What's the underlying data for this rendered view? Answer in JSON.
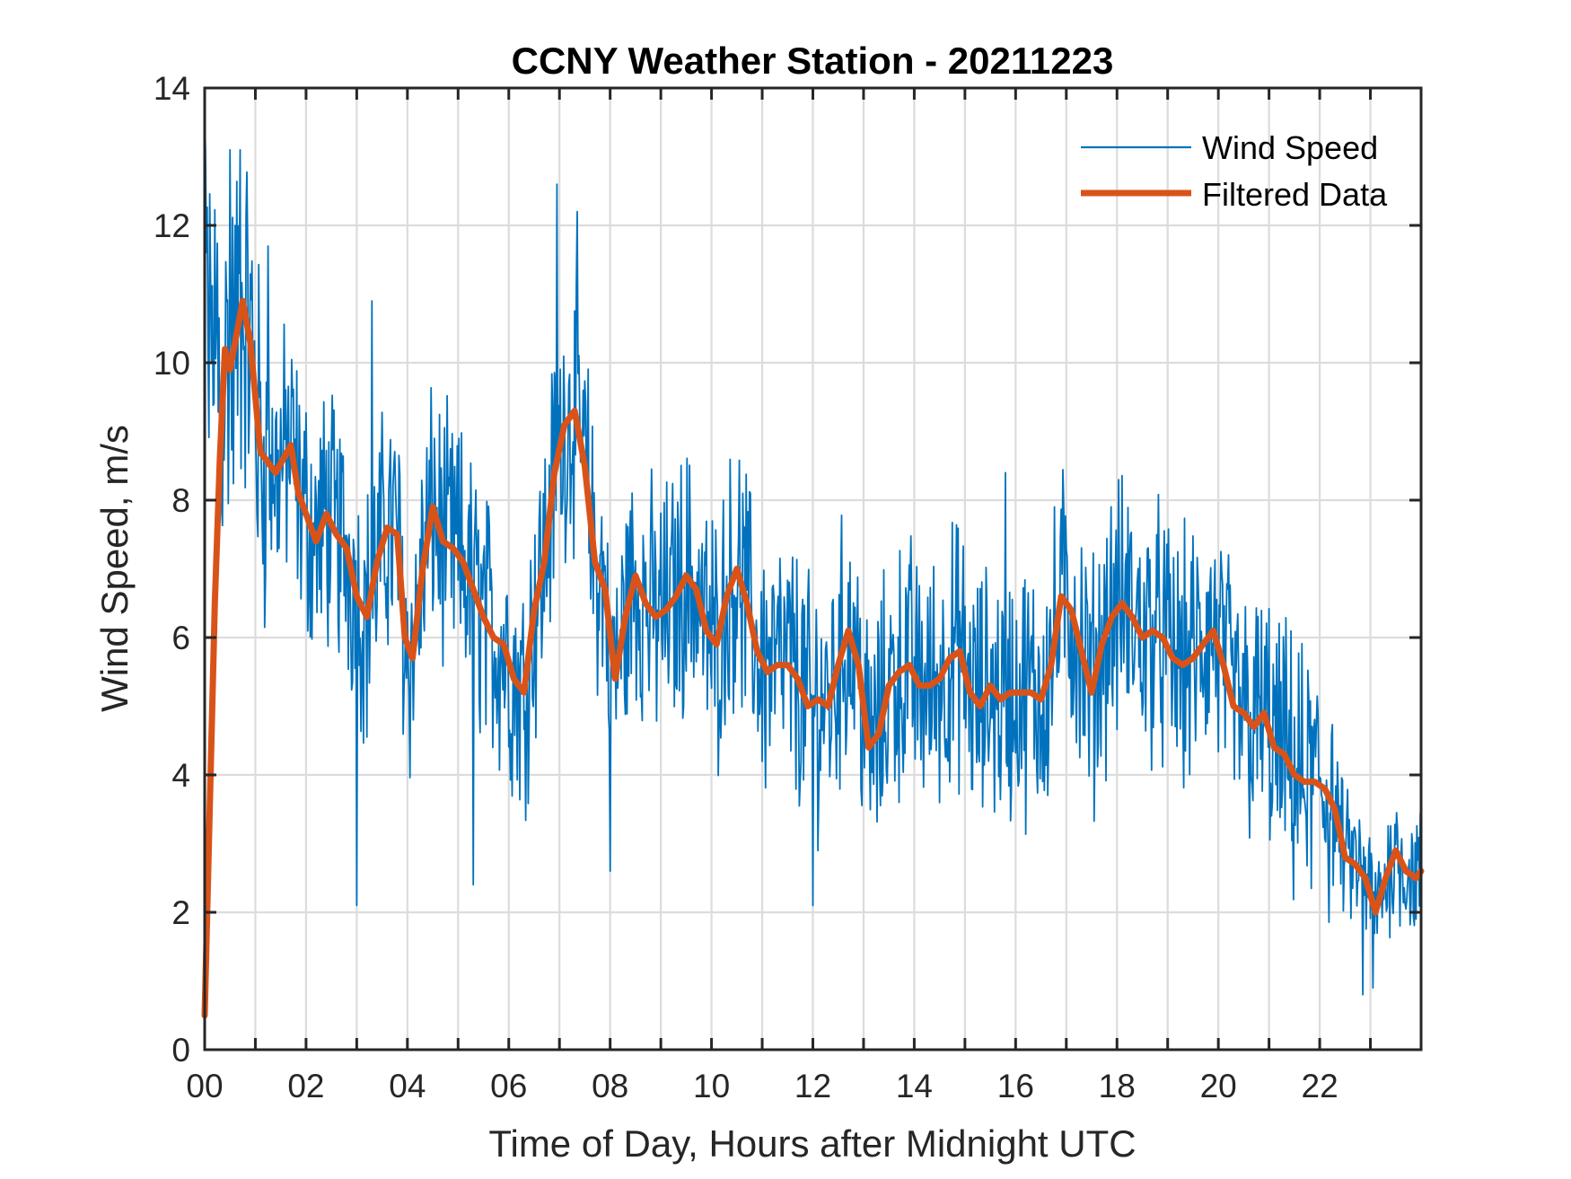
{
  "chart_data": {
    "type": "line",
    "title": "CCNY Weather Station - 20211223",
    "xlabel": "Time of Day, Hours after Midnight UTC",
    "ylabel": "Wind Speed, m/s",
    "xlim": [
      0,
      24
    ],
    "ylim": [
      0,
      14
    ],
    "xticks": [
      0,
      2,
      4,
      6,
      8,
      10,
      12,
      14,
      16,
      18,
      20,
      22
    ],
    "xtick_labels": [
      "00",
      "02",
      "04",
      "06",
      "08",
      "10",
      "12",
      "14",
      "16",
      "18",
      "20",
      "22"
    ],
    "xminor_grid_step_hours": 1,
    "yticks": [
      0,
      2,
      4,
      6,
      8,
      10,
      12,
      14
    ],
    "ytick_labels": [
      "0",
      "2",
      "4",
      "6",
      "8",
      "10",
      "12",
      "14"
    ],
    "grid": true,
    "legend": {
      "placement": "top-right",
      "entries": [
        "Wind Speed",
        "Filtered Data"
      ]
    },
    "series": [
      {
        "name": "Wind Speed",
        "color": "#0072BD",
        "style": "thin line, noisy high-frequency samples",
        "noise_amplitude_ms": 1.6,
        "notable_points": [
          {
            "x": 0.0,
            "y": 13.6
          },
          {
            "x": 0.5,
            "y": 13.1
          },
          {
            "x": 0.7,
            "y": 13.1
          },
          {
            "x": 1.25,
            "y": 11.7
          },
          {
            "x": 3.0,
            "y": 2.1
          },
          {
            "x": 3.3,
            "y": 10.9
          },
          {
            "x": 5.3,
            "y": 2.4
          },
          {
            "x": 6.95,
            "y": 12.6
          },
          {
            "x": 7.35,
            "y": 12.2
          },
          {
            "x": 8.0,
            "y": 2.6
          },
          {
            "x": 12.0,
            "y": 2.1
          },
          {
            "x": 15.8,
            "y": 8.4
          },
          {
            "x": 22.85,
            "y": 0.8
          },
          {
            "x": 23.05,
            "y": 0.9
          }
        ]
      },
      {
        "name": "Filtered Data",
        "color": "#D95319",
        "style": "thick line",
        "x": [
          0.0,
          0.1,
          0.2,
          0.3,
          0.4,
          0.5,
          0.6,
          0.75,
          0.9,
          1.0,
          1.1,
          1.2,
          1.4,
          1.55,
          1.7,
          1.85,
          2.0,
          2.2,
          2.4,
          2.6,
          2.8,
          3.0,
          3.2,
          3.4,
          3.6,
          3.8,
          3.95,
          4.1,
          4.3,
          4.5,
          4.7,
          4.9,
          5.1,
          5.3,
          5.5,
          5.7,
          5.9,
          6.1,
          6.3,
          6.5,
          6.7,
          6.9,
          7.1,
          7.3,
          7.5,
          7.7,
          7.9,
          8.1,
          8.3,
          8.5,
          8.7,
          8.9,
          9.1,
          9.3,
          9.5,
          9.7,
          9.9,
          10.1,
          10.3,
          10.5,
          10.7,
          10.9,
          11.1,
          11.3,
          11.5,
          11.7,
          11.9,
          12.1,
          12.3,
          12.5,
          12.7,
          12.9,
          13.1,
          13.3,
          13.5,
          13.7,
          13.9,
          14.1,
          14.3,
          14.5,
          14.7,
          14.9,
          15.1,
          15.3,
          15.5,
          15.7,
          15.9,
          16.1,
          16.3,
          16.5,
          16.7,
          16.9,
          17.1,
          17.3,
          17.5,
          17.7,
          17.9,
          18.1,
          18.3,
          18.5,
          18.7,
          18.9,
          19.1,
          19.3,
          19.5,
          19.7,
          19.9,
          20.1,
          20.3,
          20.5,
          20.7,
          20.9,
          21.1,
          21.3,
          21.5,
          21.7,
          21.9,
          22.1,
          22.3,
          22.5,
          22.7,
          22.9,
          23.1,
          23.3,
          23.5,
          23.7,
          23.9,
          24.0
        ],
        "y": [
          0.5,
          3.5,
          6.5,
          8.6,
          10.2,
          9.9,
          10.3,
          10.9,
          10.3,
          9.5,
          8.7,
          8.6,
          8.4,
          8.6,
          8.8,
          8.1,
          7.8,
          7.4,
          7.8,
          7.5,
          7.3,
          6.6,
          6.3,
          7.1,
          7.6,
          7.5,
          6.0,
          5.7,
          7.0,
          7.9,
          7.4,
          7.3,
          7.1,
          6.7,
          6.3,
          6.0,
          5.9,
          5.4,
          5.2,
          6.4,
          7.1,
          8.4,
          9.1,
          9.3,
          8.5,
          7.1,
          6.7,
          5.4,
          6.3,
          6.9,
          6.5,
          6.3,
          6.4,
          6.6,
          6.9,
          6.7,
          6.1,
          5.9,
          6.6,
          7.0,
          6.5,
          5.8,
          5.5,
          5.6,
          5.6,
          5.4,
          5.0,
          5.1,
          5.0,
          5.6,
          6.1,
          5.6,
          4.4,
          4.6,
          5.3,
          5.5,
          5.6,
          5.3,
          5.3,
          5.4,
          5.7,
          5.8,
          5.2,
          5.0,
          5.3,
          5.1,
          5.2,
          5.2,
          5.2,
          5.1,
          5.6,
          6.6,
          6.4,
          5.8,
          5.2,
          5.9,
          6.3,
          6.5,
          6.3,
          6.0,
          6.1,
          6.0,
          5.7,
          5.6,
          5.7,
          5.9,
          6.1,
          5.6,
          5.0,
          4.9,
          4.7,
          4.9,
          4.4,
          4.3,
          4.0,
          3.9,
          3.9,
          3.8,
          3.5,
          2.8,
          2.7,
          2.5,
          2.0,
          2.5,
          2.9,
          2.6,
          2.5,
          2.6
        ]
      }
    ]
  }
}
